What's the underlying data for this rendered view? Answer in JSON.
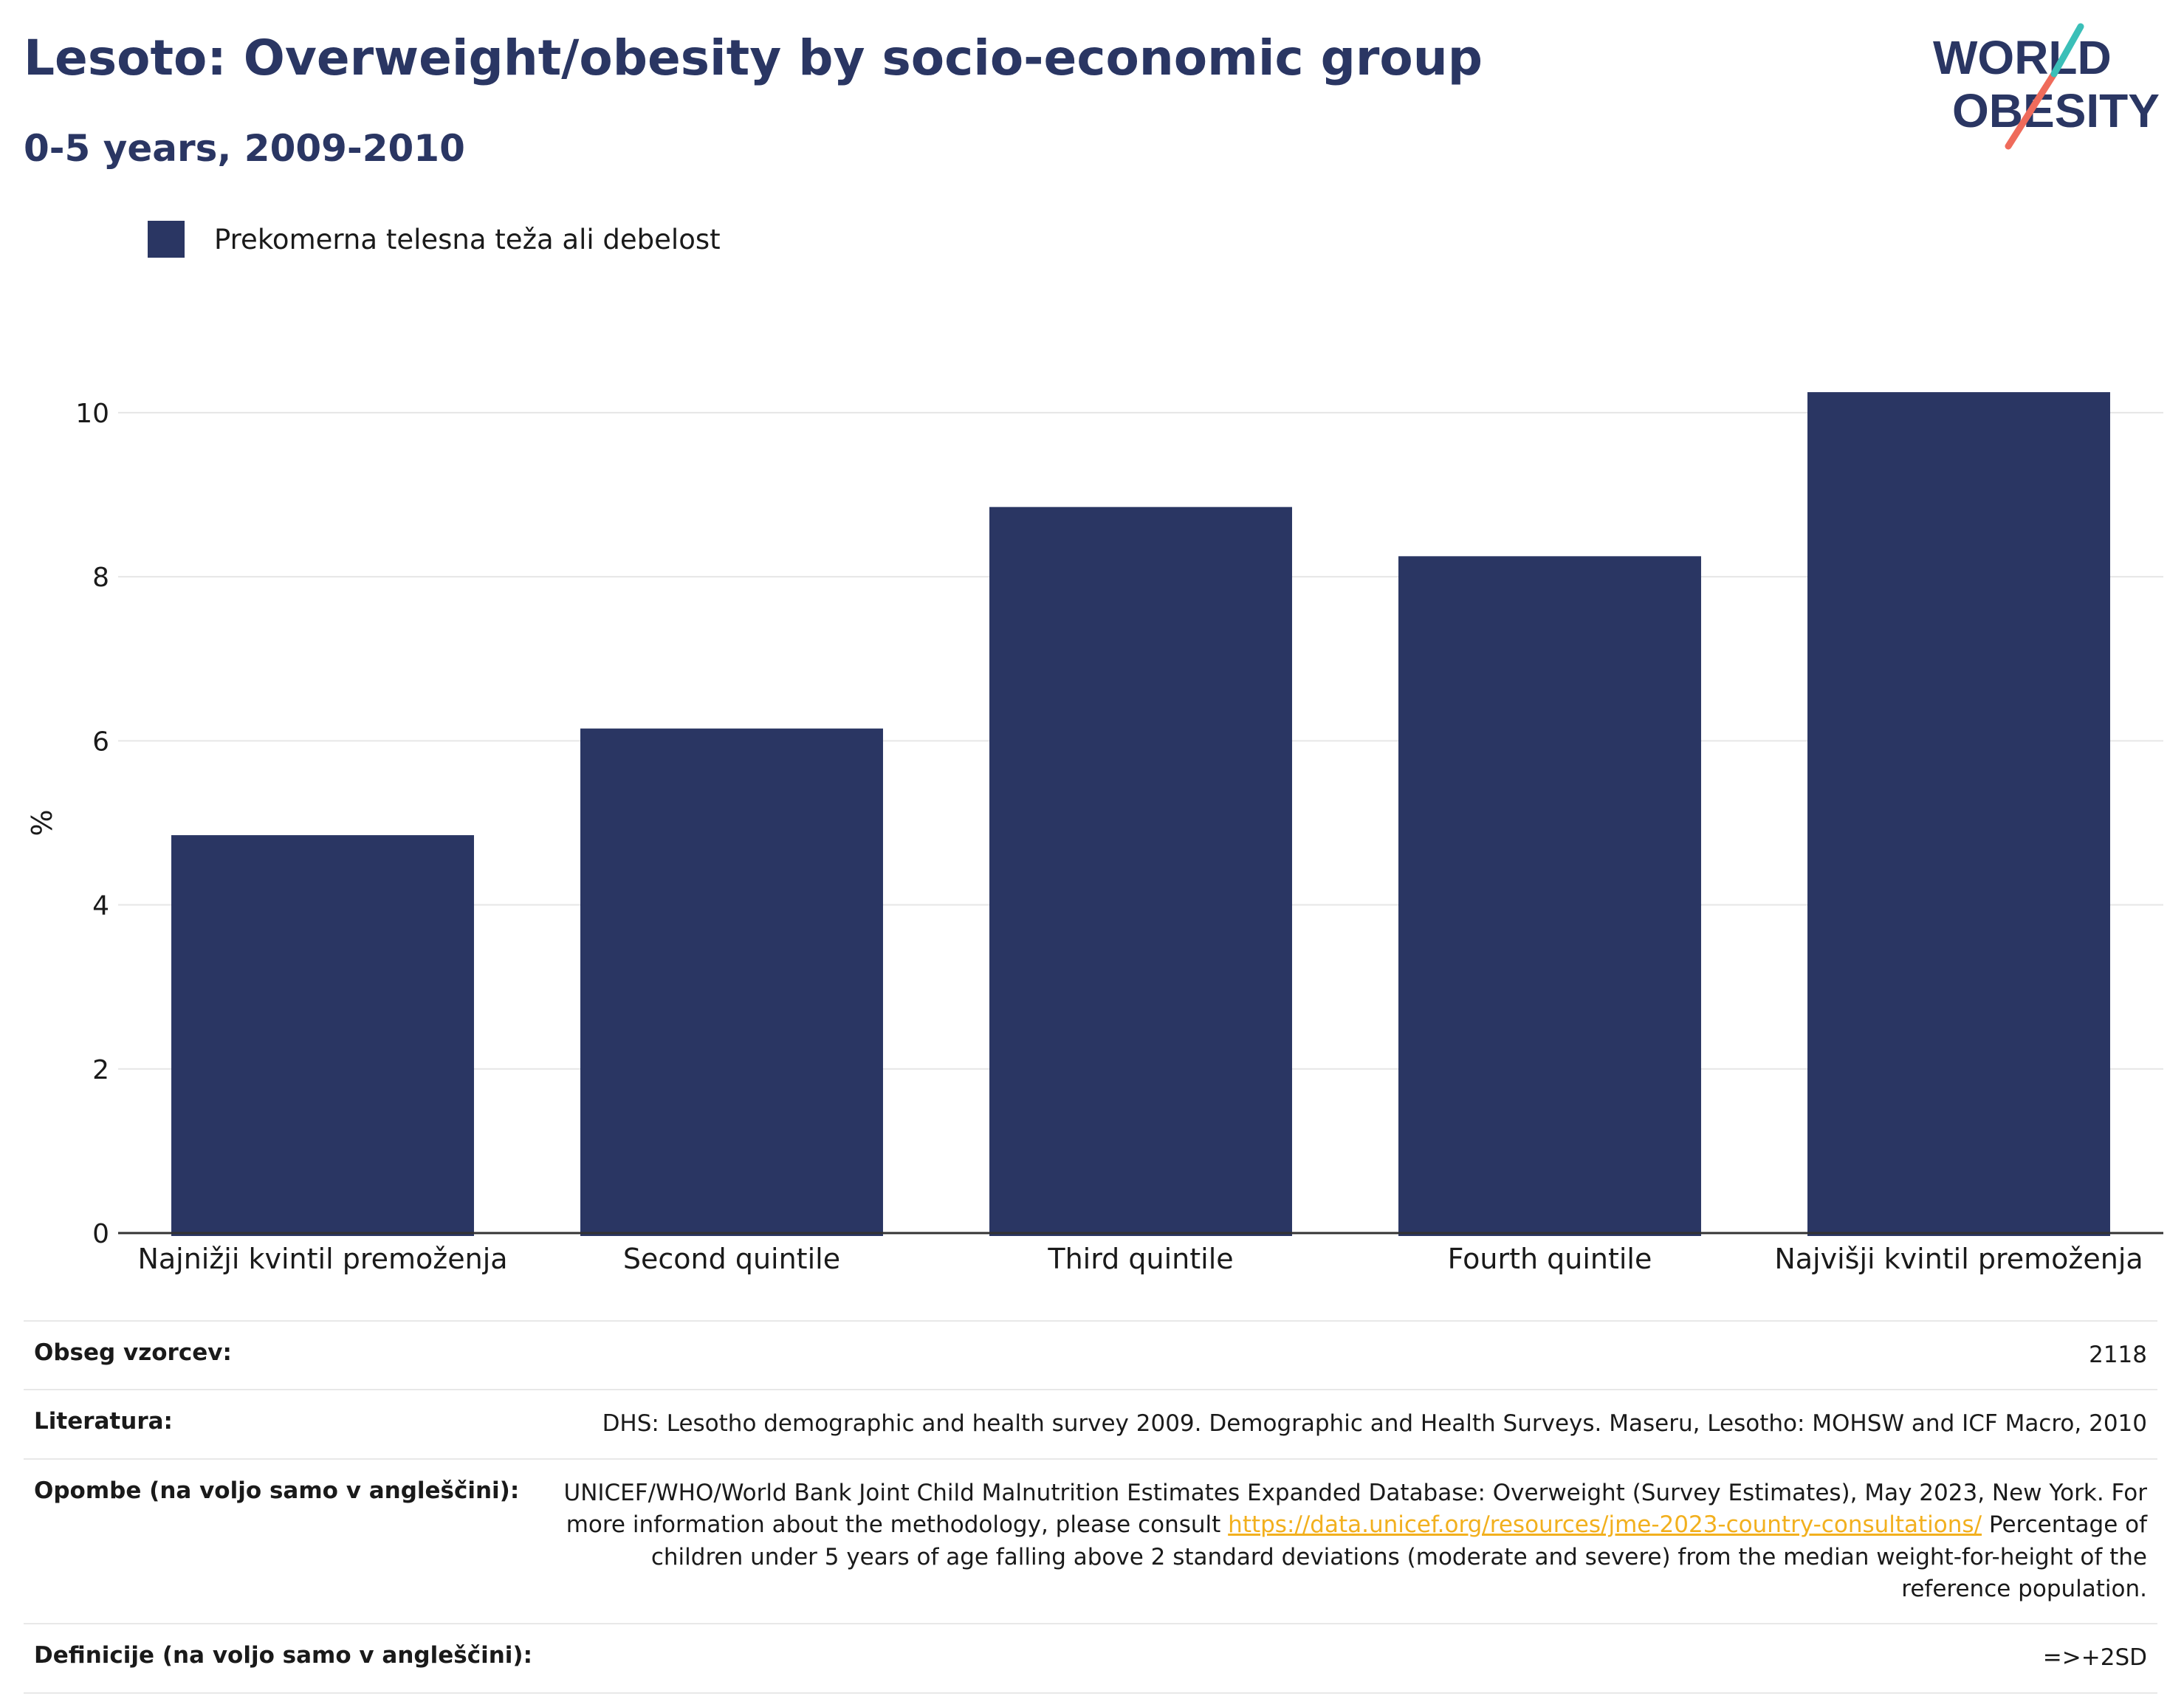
{
  "header": {
    "title": "Lesoto: Overweight/obesity by socio-economic group",
    "subtitle": "0-5 years, 2009-2010"
  },
  "logo": {
    "line1": "WORLD",
    "line2": "OBESITY"
  },
  "legend": {
    "label": "Prekomerna telesna teža ali debelost"
  },
  "chart_data": {
    "type": "bar",
    "categories": [
      "Najnižji kvintil premoženja",
      "Second quintile",
      "Third quintile",
      "Fourth quintile",
      "Najvišji kvintil premoženja"
    ],
    "series": [
      {
        "name": "Prekomerna telesna teža ali debelost",
        "values": [
          4.85,
          6.15,
          8.85,
          8.25,
          10.25
        ]
      }
    ],
    "ylabel": "%",
    "xlabel": "",
    "ylim": [
      0,
      10.8
    ],
    "yticks": [
      0,
      2,
      4,
      6,
      8,
      10
    ],
    "grid": true,
    "legend_position": "top-left",
    "bar_color": "#2a3663"
  },
  "notes": {
    "sample_label": "Obseg vzorcev:",
    "sample_value": "2118",
    "literature_label": "Literatura:",
    "literature_value": "DHS: Lesotho demographic and health survey 2009. Demographic and Health Surveys. Maseru, Lesotho: MOHSW and ICF Macro, 2010",
    "remarks_label": "Opombe (na voljo samo v angleščini):",
    "remarks_text1": "UNICEF/WHO/World Bank Joint Child Malnutrition Estimates Expanded Database: Overweight (Survey Estimates), May 2023, New York. For more information about the methodology, please consult",
    "remarks_link": "https://data.unicef.org/resources/jme-2023-country-consultations/",
    "remarks_text2": "Percentage of children under 5 years of age falling above 2 standard deviations (moderate and severe) from the median weight-for-height of the reference population.",
    "definitions_label": "Definicije (na voljo samo v angleščini):",
    "definitions_value": "=>+2SD"
  },
  "colors": {
    "primary": "#2a3663",
    "accent_teal": "#3bbfb8",
    "accent_coral": "#ef6b5b",
    "link": "#f2b01e"
  }
}
